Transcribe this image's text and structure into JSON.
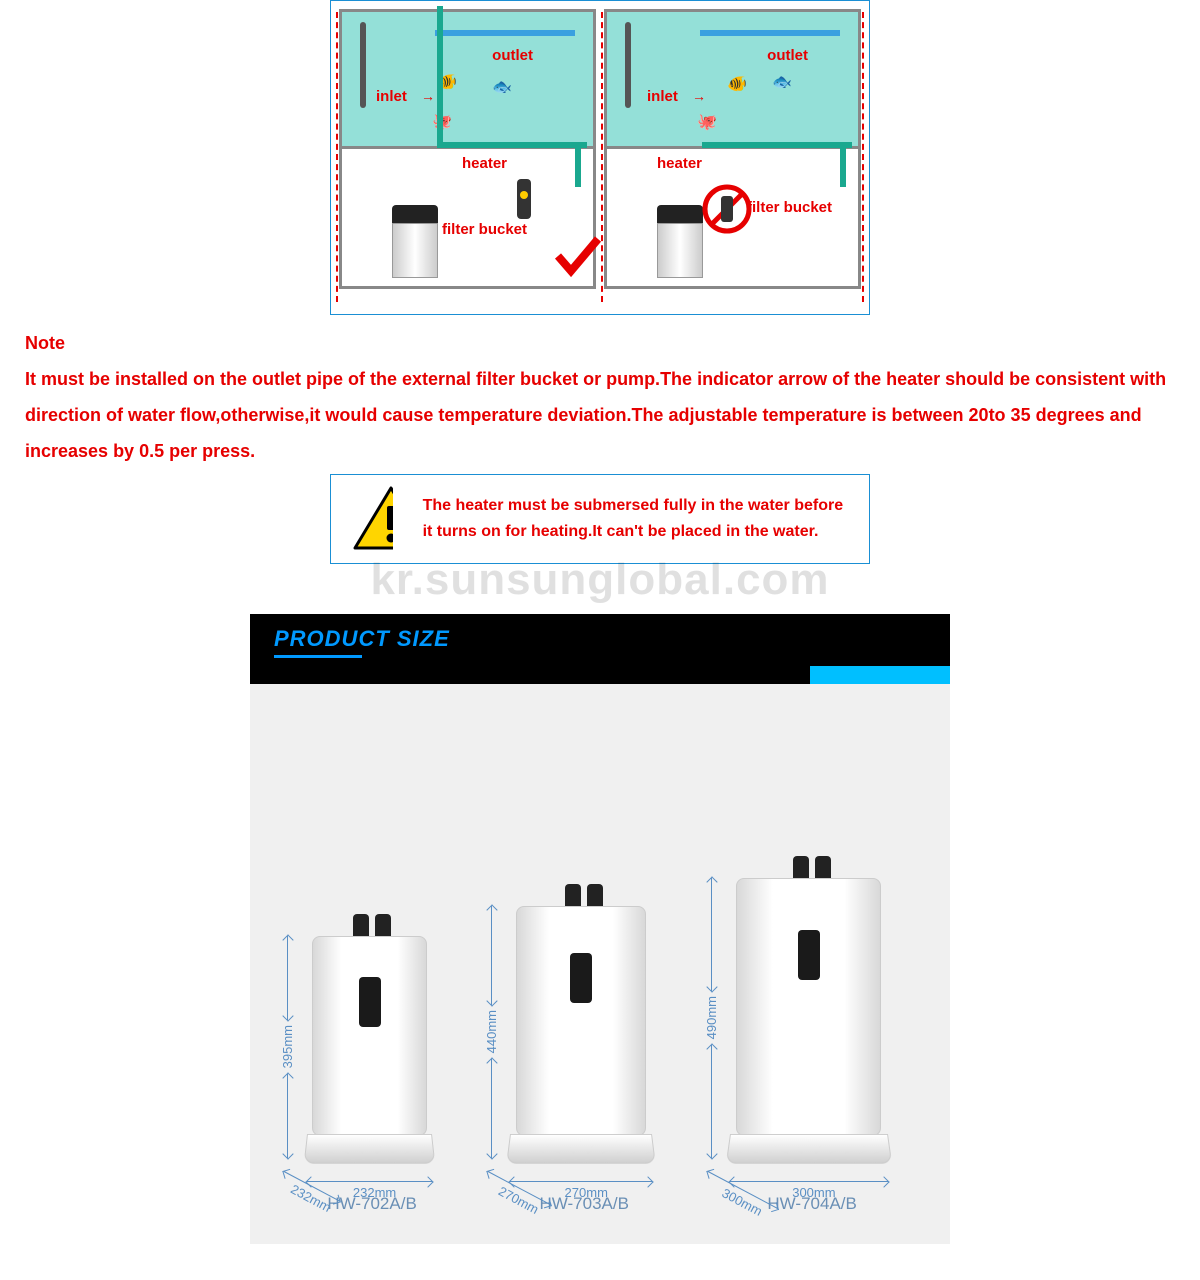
{
  "diagram": {
    "labels": {
      "outlet": "outlet",
      "inlet": "inlet",
      "heater": "heater",
      "filter_bucket": "filter bucket"
    }
  },
  "note": {
    "title": "Note",
    "body": "It must be installed on the outlet pipe of the external filter bucket or pump.The indicator arrow of the heater should be consistent with direction of water flow,otherwise,it would cause temperature deviation.The adjustable temperature is between 20to 35 degrees and increases by 0.5 per press."
  },
  "warning": {
    "text": "The heater must be submersed fully in the water before it turns on for heating.It can't be placed in the water."
  },
  "watermark": "kr.sunsunglobal.com",
  "product_size": {
    "title": "PRODUCT SIZE",
    "items": [
      {
        "model": "HW-702A/B",
        "height": "395mm",
        "depth": "232mm",
        "width": "232mm",
        "body_h": 200,
        "body_w": 115,
        "base_w": 125
      },
      {
        "model": "HW-703A/B",
        "height": "440mm",
        "depth": "270mm",
        "width": "270mm",
        "body_h": 230,
        "body_w": 130,
        "base_w": 142
      },
      {
        "model": "HW-704A/B",
        "height": "490mm",
        "depth": "300mm",
        "width": "300mm",
        "body_h": 258,
        "body_w": 145,
        "base_w": 158
      }
    ]
  },
  "colors": {
    "red": "#e60000",
    "border_blue": "#1a8fd4",
    "dim_blue": "#5a8fc4",
    "tank_water": "#94e0d8",
    "hose_green": "#1aa88f",
    "title_blue": "#0099ff",
    "header_black": "#000000",
    "label_steel": "#6a8fb5",
    "body_grey": "#f0f0f0"
  }
}
